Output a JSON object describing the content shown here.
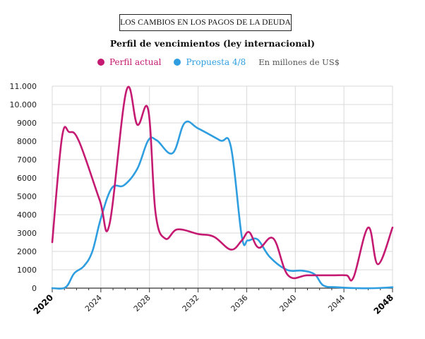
{
  "header": {
    "box_title": "LOS CAMBIOS EN LOS PAGOS DE LA DEUDA",
    "subtitle": "Perfil de vencimientos (ley internacional)"
  },
  "legend": {
    "series1": "Perfil actual",
    "series2": "Propuesta 4/8",
    "unit": "En millones de US$"
  },
  "colors": {
    "perfil_actual": "#c51a72",
    "propuesta": "#2f9ee0",
    "grid": "#d9d9d9",
    "axis": "#333333"
  },
  "chart_data": {
    "type": "line",
    "title": "Perfil de vencimientos (ley internacional)",
    "xlabel": "",
    "ylabel": "En millones de US$",
    "xlim": [
      2020,
      2048
    ],
    "ylim": [
      0,
      11000
    ],
    "y_ticks": [
      0,
      1000,
      2000,
      3000,
      4000,
      5000,
      6000,
      7000,
      8000,
      9000,
      10000,
      11000
    ],
    "y_tick_labels": [
      "0",
      "1000",
      "2000",
      "3000",
      "4000",
      "5000",
      "6000",
      "7000",
      "8000",
      "9000",
      "10.000",
      "11.000"
    ],
    "x_ticks": [
      2020,
      2024,
      2028,
      2032,
      2036,
      2040,
      2044,
      2048
    ],
    "x_tick_labels": [
      "2020",
      "2024",
      "2028",
      "2032",
      "2036",
      "2040",
      "2044",
      "2048"
    ],
    "x_bold_ticks": [
      "2020",
      "2048"
    ],
    "series": [
      {
        "name": "Perfil actual",
        "x": [
          2020,
          2020.8,
          2021.4,
          2022.2,
          2023.9,
          2024.7,
          2026.1,
          2027.0,
          2027.9,
          2028.5,
          2029.3,
          2030.3,
          2032.0,
          2033.3,
          2034.7,
          2035.6,
          2036.2,
          2037.0,
          2038.2,
          2039.4,
          2041.0,
          2043.0,
          2044.2,
          2044.8,
          2046.0,
          2046.8,
          2048.0
        ],
        "values": [
          2500,
          8200,
          8500,
          8000,
          4800,
          3450,
          10750,
          8900,
          9700,
          4100,
          2700,
          3200,
          2950,
          2800,
          2100,
          2600,
          3050,
          2200,
          2700,
          700,
          700,
          700,
          700,
          600,
          3300,
          1300,
          3300
        ]
      },
      {
        "name": "Propuesta 4/8",
        "x": [
          2020,
          2021.1,
          2021.8,
          2022.6,
          2023.3,
          2024.0,
          2024.9,
          2025.9,
          2027.0,
          2027.9,
          2028.6,
          2029.9,
          2030.9,
          2032.0,
          2033.8,
          2034.7,
          2035.6,
          2036.1,
          2036.9,
          2037.9,
          2039.3,
          2040.6,
          2041.6,
          2042.3,
          2043.4,
          2045.0,
          2046.6,
          2048.0
        ],
        "values": [
          0,
          50,
          800,
          1200,
          2000,
          3800,
          5450,
          5600,
          6500,
          8050,
          8050,
          7350,
          9000,
          8700,
          8050,
          7700,
          2800,
          2600,
          2650,
          1700,
          1000,
          950,
          750,
          150,
          50,
          0,
          0,
          50
        ]
      }
    ]
  }
}
